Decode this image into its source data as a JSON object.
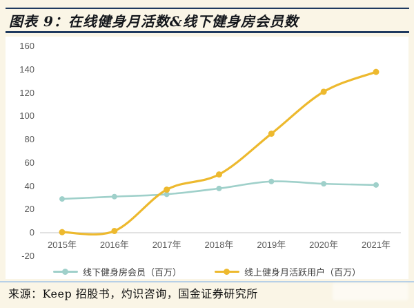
{
  "page": {
    "title": "图表 9：在线健身月活数&线下健身房会员数",
    "source": "来源：Keep 招股书，灼识咨询，国金证券研究所"
  },
  "colors": {
    "background": "#faf5e6",
    "card": "#ffffff",
    "title_rule": "#1f3a5f",
    "title_text": "#14171c",
    "axis_text": "#595959",
    "zero_line": "#d9d9d9",
    "legend_text": "#3a3a3a",
    "separator": "#a6c7e7",
    "source_text": "#111111",
    "series_offline": "#9fd0ca",
    "series_online": "#edb92e"
  },
  "chart_data": {
    "type": "line",
    "categories": [
      "2015年",
      "2016年",
      "2017年",
      "2018年",
      "2019年",
      "2020年",
      "2021年"
    ],
    "series": [
      {
        "name": "线下健身房会员（百万）",
        "values": [
          29,
          31,
          33,
          38,
          44,
          42,
          41
        ],
        "color": "#9fd0ca"
      },
      {
        "name": "线上健身月活跃用户（百万）",
        "values": [
          0.5,
          1.5,
          37,
          50,
          85,
          121,
          138
        ],
        "color": "#edb92e"
      }
    ],
    "ylim": [
      -20,
      160
    ],
    "ytick_step": 20,
    "grid": "zero-line-only",
    "legend_position": "bottom",
    "marker": "circle",
    "smooth": true
  }
}
